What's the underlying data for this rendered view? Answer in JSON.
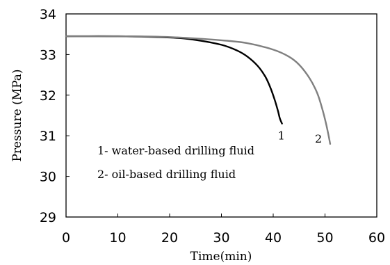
{
  "chart_data": {
    "type": "line",
    "title": "",
    "xlabel": "Time(min)",
    "ylabel": "Pressure (MPa)",
    "xlim": [
      0,
      60
    ],
    "ylim": [
      29,
      34
    ],
    "xticks": [
      "0",
      "10",
      "20",
      "30",
      "40",
      "50",
      "60"
    ],
    "yticks": [
      "29",
      "30",
      "31",
      "32",
      "33",
      "34"
    ],
    "grid": false,
    "series": [
      {
        "name": "1- water-based drilling fluid",
        "curve_label": "1",
        "color": "#000000",
        "x": [
          0,
          10,
          20,
          25,
          30,
          33,
          35,
          37,
          38.5,
          39.5,
          40.3,
          40.9,
          41.3,
          41.7
        ],
        "y": [
          33.45,
          33.45,
          33.42,
          33.36,
          33.24,
          33.1,
          32.95,
          32.72,
          32.45,
          32.17,
          31.88,
          31.62,
          31.42,
          31.3
        ]
      },
      {
        "name": "2- oil-based drilling fluid",
        "curve_label": "2",
        "color": "#808080",
        "x": [
          0,
          10,
          20,
          30,
          35,
          40,
          43,
          45,
          47,
          48.5,
          49.5,
          50.2,
          50.7,
          51.0
        ],
        "y": [
          33.45,
          33.45,
          33.43,
          33.35,
          33.28,
          33.12,
          32.95,
          32.75,
          32.42,
          32.05,
          31.65,
          31.3,
          31.0,
          30.8
        ]
      }
    ],
    "legend_lines": [
      "1- water-based drilling fluid",
      "2- oil-based drilling fluid"
    ]
  }
}
